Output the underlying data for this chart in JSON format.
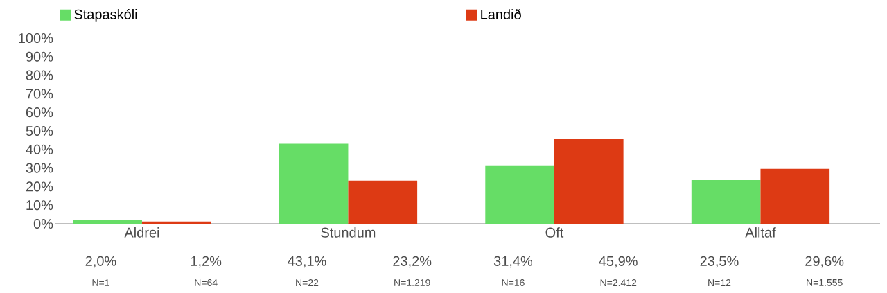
{
  "chart_data": {
    "type": "bar",
    "categories": [
      "Aldrei",
      "Stundum",
      "Oft",
      "Alltaf"
    ],
    "series": [
      {
        "name": "Stapaskóli",
        "color": "#66dd66",
        "values": [
          2.0,
          43.1,
          31.4,
          23.5
        ],
        "value_labels": [
          "2,0%",
          "43,1%",
          "31,4%",
          "23,5%"
        ]
      },
      {
        "name": "Landið",
        "color": "#dd3a14",
        "values": [
          1.2,
          23.2,
          45.9,
          29.6
        ],
        "value_labels": [
          "1,2%",
          "23,2%",
          "45,9%",
          "29,6%"
        ]
      }
    ],
    "ylim": [
      0,
      100
    ],
    "yticks": [
      {
        "value": 0,
        "label": "0%"
      },
      {
        "value": 10,
        "label": "10%"
      },
      {
        "value": 20,
        "label": "20%"
      },
      {
        "value": 30,
        "label": "30%"
      },
      {
        "value": 40,
        "label": "40%"
      },
      {
        "value": 50,
        "label": "50%"
      },
      {
        "value": 60,
        "label": "60%"
      },
      {
        "value": 70,
        "label": "70%"
      },
      {
        "value": 80,
        "label": "80%"
      },
      {
        "value": 90,
        "label": "90%"
      },
      {
        "value": 100,
        "label": "100%"
      }
    ],
    "annotations": [
      "N=1",
      "N=64",
      "N=22",
      "N=1.219",
      "N=16",
      "N=2.412",
      "N=12",
      "N=1.555"
    ],
    "legend": "top",
    "grid": false
  }
}
